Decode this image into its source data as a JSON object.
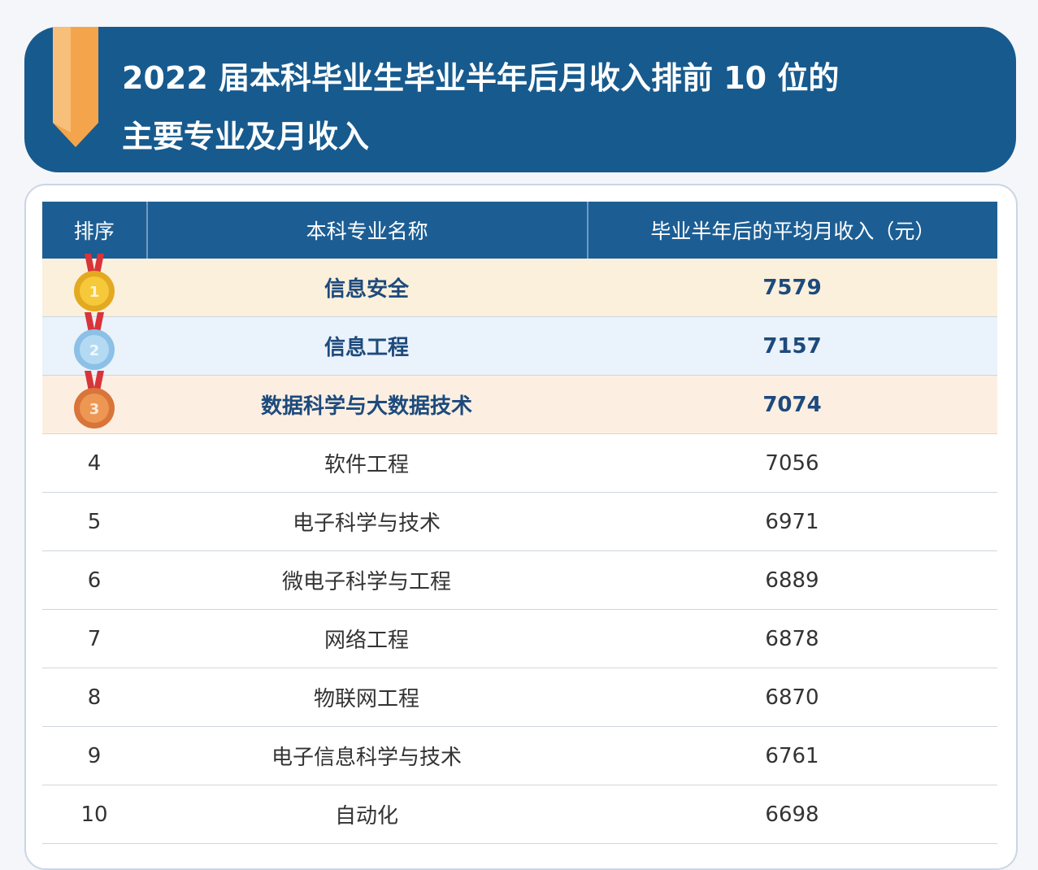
{
  "header": {
    "title_lines": [
      "2022 届本科毕业生毕业半年后月收入排前 10 位的",
      "主要专业及月收入"
    ]
  },
  "table": {
    "columns": [
      "排序",
      "本科专业名称",
      "毕业半年后的平均月收入（元）"
    ],
    "rows": [
      [
        1,
        "信息安全",
        7579
      ],
      [
        2,
        "信息工程",
        7157
      ],
      [
        3,
        "数据科学与大数据技术",
        7074
      ],
      [
        4,
        "软件工程",
        7056
      ],
      [
        5,
        "电子科学与技术",
        6971
      ],
      [
        6,
        "微电子科学与工程",
        6889
      ],
      [
        7,
        "网络工程",
        6878
      ],
      [
        8,
        "物联网工程",
        6870
      ],
      [
        9,
        "电子信息科学与技术",
        6761
      ],
      [
        10,
        "自动化",
        6698
      ]
    ]
  }
}
